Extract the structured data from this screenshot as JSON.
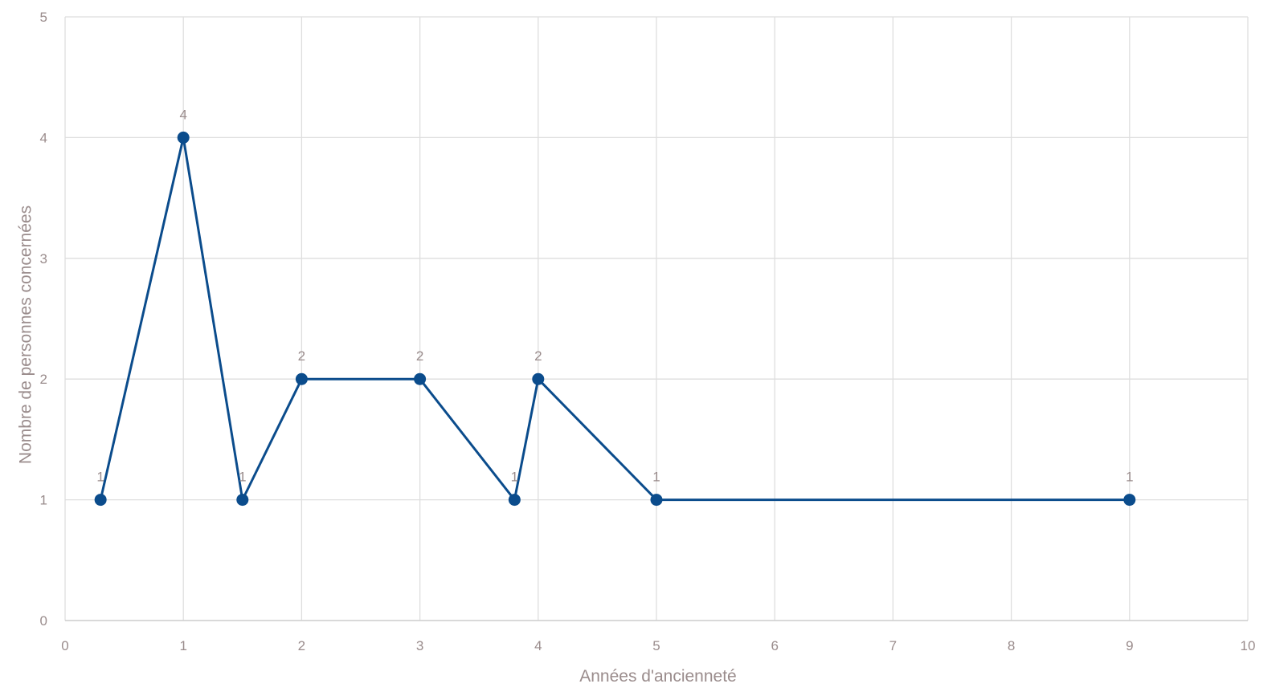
{
  "chart_data": {
    "type": "line",
    "xlabel": "Années d'ancienneté",
    "ylabel": "Nombre de personnes concernées",
    "ylim": [
      0,
      5
    ],
    "yticks": [
      "0",
      "1",
      "2",
      "3",
      "4",
      "5"
    ],
    "xticks": [
      "0",
      "1",
      "2",
      "3",
      "4",
      "5",
      "6",
      "7",
      "8",
      "9",
      "10"
    ],
    "grid": true,
    "series": [
      {
        "color": "#0b4c8c",
        "points": [
          {
            "x": "0.3",
            "y": 1
          },
          {
            "x": "1",
            "y": 4
          },
          {
            "x": "1.5",
            "y": 1
          },
          {
            "x": "2",
            "y": 2
          },
          {
            "x": "3",
            "y": 2
          },
          {
            "x": "3.8",
            "y": 1
          },
          {
            "x": "4",
            "y": 2
          },
          {
            "x": "5",
            "y": 1
          },
          {
            "x": "9",
            "y": 1
          }
        ]
      }
    ]
  }
}
